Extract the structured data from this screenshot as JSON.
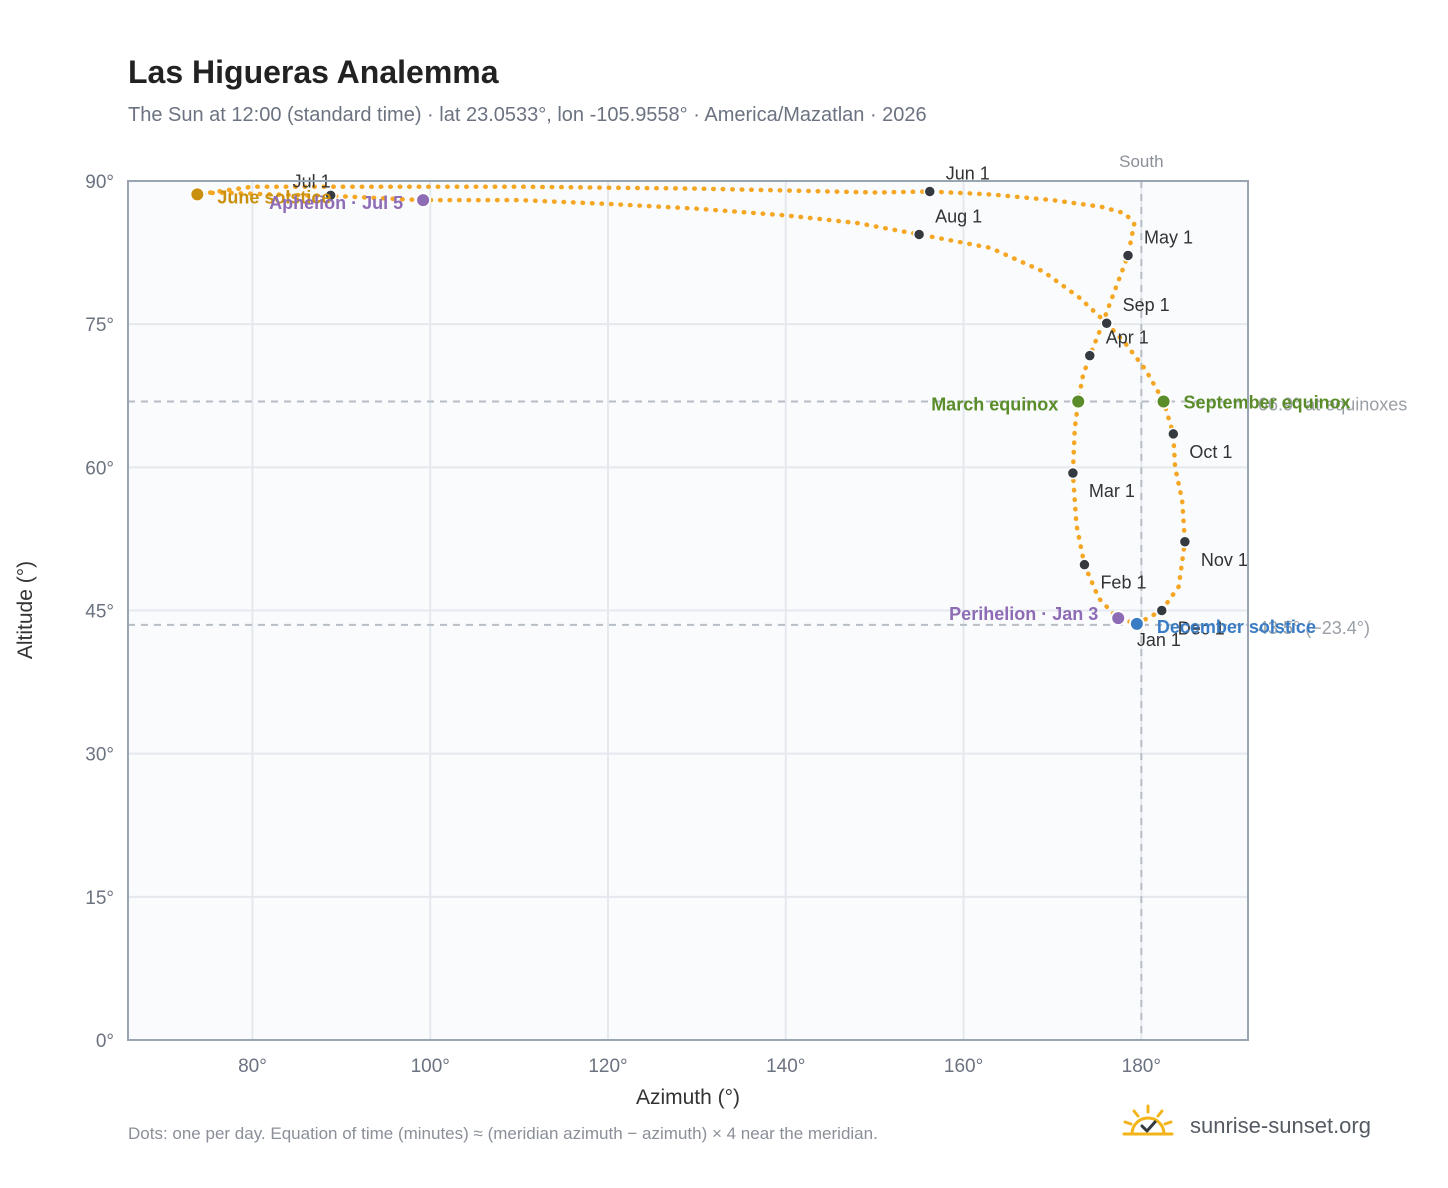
{
  "title": "Las Higueras Analemma",
  "subtitle": "The Sun at 12:00 (standard time) · lat 23.0533°, lon -105.9558° · America/Mazatlan · 2026",
  "footnote": "Dots: one per day. Equation of time (minutes) ≈ (meridian azimuth − azimuth) × 4 near the meridian.",
  "brand": {
    "name": "sunrise-sunset.org",
    "icon": "sun-check-icon"
  },
  "colors": {
    "curve": "#f5a623",
    "month_dot": "#343a40",
    "equinox": "#5b8c2a",
    "december_solstice": "#3b7dc4",
    "june_solstice": "#c9900e",
    "apsis": "#8e6bb5",
    "reference_line": "#b8bec6",
    "grid": "#e5e9ee",
    "plot_bg": "#f9fbfd"
  },
  "chart_data": {
    "type": "scatter",
    "title": "Las Higueras Analemma",
    "xlabel": "Azimuth (°)",
    "ylabel": "Altitude (°)",
    "xlim": [
      66,
      192
    ],
    "ylim": [
      0,
      90
    ],
    "x_ticks": [
      80,
      100,
      120,
      140,
      160,
      180
    ],
    "x_tick_labels": [
      "80°",
      "100°",
      "120°",
      "140°",
      "160°",
      "180°"
    ],
    "y_ticks": [
      0,
      15,
      30,
      45,
      60,
      75,
      90
    ],
    "y_tick_labels": [
      "0°",
      "15°",
      "30°",
      "45°",
      "60°",
      "75°",
      "90°"
    ],
    "grid": true,
    "meridian": {
      "azimuth": 180,
      "label": "South"
    },
    "reference_lines": [
      {
        "altitude": 66.9,
        "label": "66.9° at equinoxes"
      },
      {
        "altitude": 43.5,
        "label": "43.5° (−23.4°)"
      }
    ],
    "series": [
      {
        "curve_points": [
          [
            179.5,
            43.6
          ],
          [
            182.3,
            45.0
          ],
          [
            184.2,
            47.5
          ],
          [
            184.9,
            52.2
          ],
          [
            184.6,
            56.5
          ],
          [
            183.8,
            60.0
          ],
          [
            183.6,
            63.5
          ],
          [
            182.5,
            66.9
          ],
          [
            180.5,
            70.2
          ],
          [
            178.2,
            73.0
          ],
          [
            176.1,
            75.1
          ],
          [
            173.0,
            77.8
          ],
          [
            169.0,
            80.5
          ],
          [
            163.0,
            83.0
          ],
          [
            155.0,
            84.4
          ],
          [
            148.0,
            85.6
          ],
          [
            140.0,
            86.4
          ],
          [
            130.0,
            87.1
          ],
          [
            120.0,
            87.6
          ],
          [
            110.0,
            88.0
          ],
          [
            99.0,
            88.0
          ],
          [
            90.0,
            88.4
          ],
          [
            82.0,
            88.6
          ],
          [
            76.0,
            88.8
          ],
          [
            73.8,
            88.6
          ],
          [
            80.0,
            89.4
          ],
          [
            90.0,
            89.4
          ],
          [
            100.0,
            89.4
          ],
          [
            110.0,
            89.4
          ],
          [
            120.0,
            89.3
          ],
          [
            130.0,
            89.2
          ],
          [
            140.0,
            89.0
          ],
          [
            150.0,
            88.8
          ],
          [
            156.2,
            88.9
          ],
          [
            163.0,
            88.6
          ],
          [
            170.0,
            88.0
          ],
          [
            175.5,
            87.3
          ],
          [
            178.2,
            86.6
          ],
          [
            179.2,
            85.5
          ],
          [
            178.5,
            82.2
          ],
          [
            176.8,
            78.0
          ],
          [
            175.2,
            74.0
          ],
          [
            174.2,
            71.7
          ],
          [
            173.4,
            69.5
          ],
          [
            172.9,
            66.9
          ],
          [
            172.5,
            64.0
          ],
          [
            172.3,
            59.4
          ],
          [
            172.7,
            54.0
          ],
          [
            173.6,
            49.8
          ],
          [
            175.2,
            46.3
          ],
          [
            177.3,
            44.2
          ],
          [
            179.5,
            43.6
          ]
        ]
      }
    ],
    "month_markers": [
      {
        "label": "Jan 1",
        "azimuth": 179.5,
        "altitude": 43.6
      },
      {
        "label": "Feb 1",
        "azimuth": 173.6,
        "altitude": 49.8
      },
      {
        "label": "Mar 1",
        "azimuth": 172.3,
        "altitude": 59.4
      },
      {
        "label": "Apr 1",
        "azimuth": 174.2,
        "altitude": 71.7
      },
      {
        "label": "May 1",
        "azimuth": 178.5,
        "altitude": 82.2
      },
      {
        "label": "Jun 1",
        "azimuth": 156.2,
        "altitude": 88.9
      },
      {
        "label": "Jul 1",
        "azimuth": 88.8,
        "altitude": 88.5
      },
      {
        "label": "Aug 1",
        "azimuth": 155.0,
        "altitude": 84.4
      },
      {
        "label": "Sep 1",
        "azimuth": 176.1,
        "altitude": 75.1
      },
      {
        "label": "Oct 1",
        "azimuth": 183.6,
        "altitude": 63.5
      },
      {
        "label": "Nov 1",
        "azimuth": 184.9,
        "altitude": 52.2
      },
      {
        "label": "Dec 1",
        "azimuth": 182.3,
        "altitude": 45.0
      }
    ],
    "events": [
      {
        "label": "March equinox",
        "azimuth": 172.9,
        "altitude": 66.9,
        "color": "#5b8c2a"
      },
      {
        "label": "September equinox",
        "azimuth": 182.5,
        "altitude": 66.9,
        "color": "#5b8c2a"
      },
      {
        "label": "June solstice",
        "azimuth": 73.8,
        "altitude": 88.6,
        "color": "#c9900e"
      },
      {
        "label": "December solstice",
        "azimuth": 179.5,
        "altitude": 43.6,
        "color": "#3b7dc4"
      },
      {
        "label": "Perihelion · Jan 3",
        "azimuth": 177.4,
        "altitude": 44.2,
        "color": "#8e6bb5"
      },
      {
        "label": "Aphelion · Jul 5",
        "azimuth": 99.2,
        "altitude": 88.0,
        "color": "#8e6bb5"
      }
    ]
  }
}
